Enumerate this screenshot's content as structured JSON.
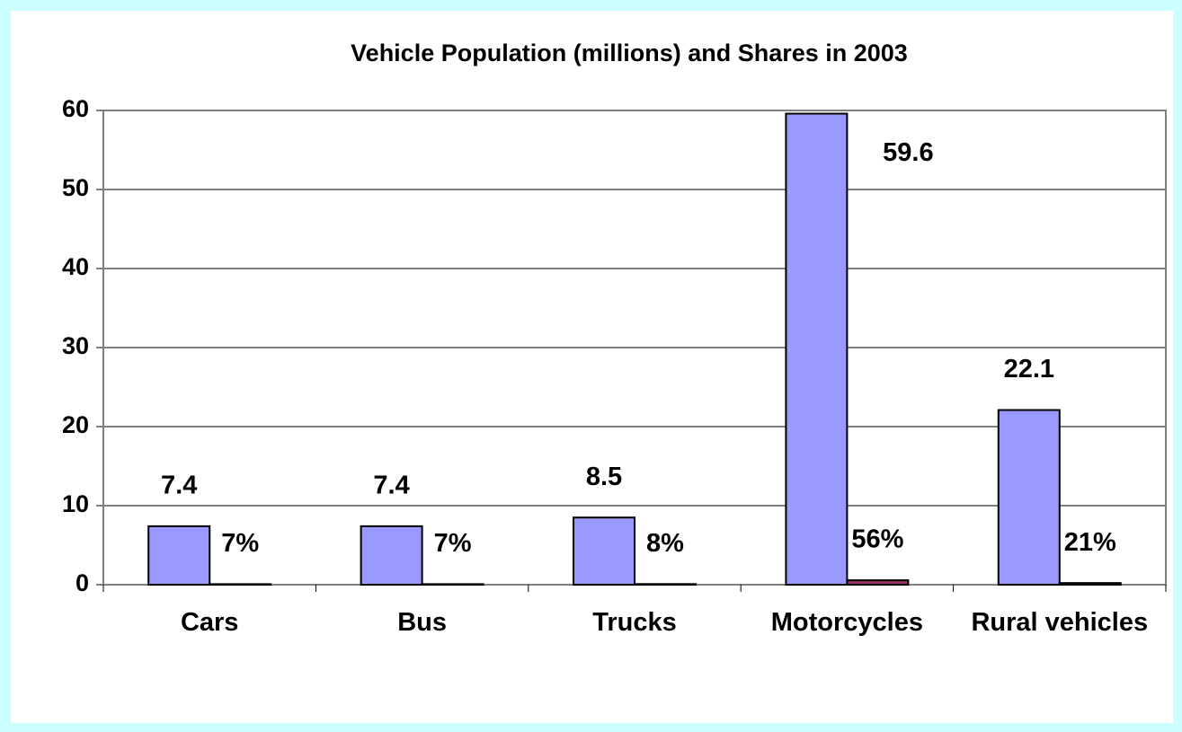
{
  "chart_data": {
    "type": "bar",
    "title": "Vehicle Population (millions) and Shares in 2003",
    "categories": [
      "Cars",
      "Bus",
      "Trucks",
      "Motorcycles",
      "Rural vehicles"
    ],
    "series": [
      {
        "color": "#9999ff",
        "values": [
          7.4,
          7.4,
          8.5,
          59.6,
          22.1
        ]
      },
      {
        "color": "#993366",
        "values": [
          0.07,
          0.07,
          0.08,
          0.56,
          0.21
        ],
        "value_labels": [
          "7%",
          "7%",
          "8%",
          "56%",
          "21%"
        ]
      }
    ],
    "ylim": [
      0,
      60
    ],
    "yticks": [
      0,
      10,
      20,
      30,
      40,
      50,
      60
    ],
    "grid": true
  }
}
